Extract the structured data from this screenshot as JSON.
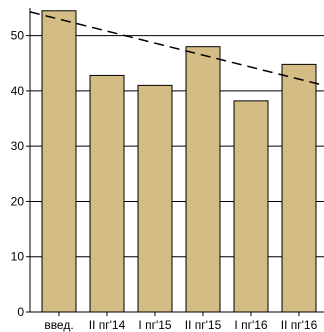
{
  "chart_data": {
    "type": "bar",
    "title": "",
    "xlabel": "",
    "ylabel": "",
    "categories": [
      "введ.",
      "II пг'14",
      "I пг'15",
      "II пг'15",
      "I пг'16",
      "II пг'16"
    ],
    "values": [
      54.5,
      42.8,
      41.0,
      48.0,
      38.2,
      44.8
    ],
    "ylim": [
      0,
      55
    ],
    "yticks": [
      0,
      10,
      20,
      30,
      40,
      50
    ],
    "grid": true,
    "legend": "none",
    "trendline": {
      "style": "dashed",
      "start_value": 54.3,
      "end_value": 41.0
    },
    "colors": {
      "bar_fill": "#d4bd85",
      "bar_stroke": "#000000",
      "grid": "#000000",
      "axis": "#000000",
      "trendline": "#000000",
      "text": "#000000"
    }
  }
}
